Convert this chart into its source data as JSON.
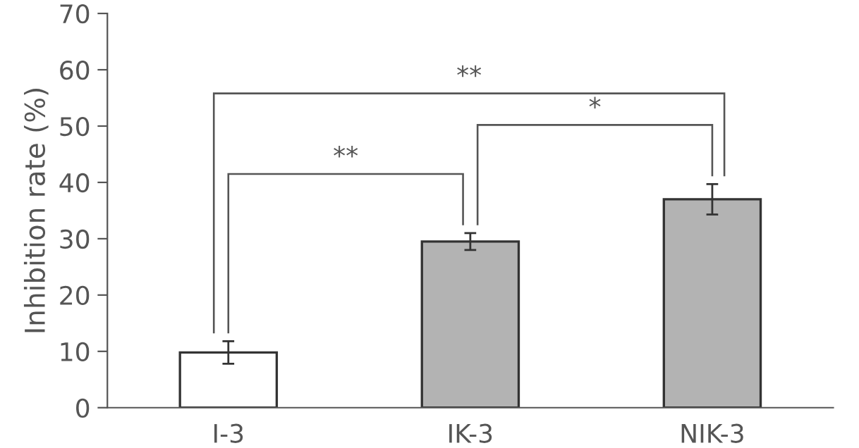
{
  "chart_data": {
    "type": "bar",
    "ylabel": "Inhibition rate (%)",
    "categories": [
      "I-3",
      "IK-3",
      "NIK-3"
    ],
    "values": [
      9.8,
      29.5,
      37
    ],
    "errors": [
      2,
      1.5,
      2.7
    ],
    "colors": [
      "#ffffff",
      "#b3b3b3",
      "#b3b3b3"
    ],
    "ylim": [
      0,
      70
    ],
    "yticks": [
      0,
      10,
      20,
      30,
      40,
      50,
      60,
      70
    ],
    "annotations": [
      "**",
      "*",
      "**"
    ],
    "grid": false,
    "legend": false
  }
}
